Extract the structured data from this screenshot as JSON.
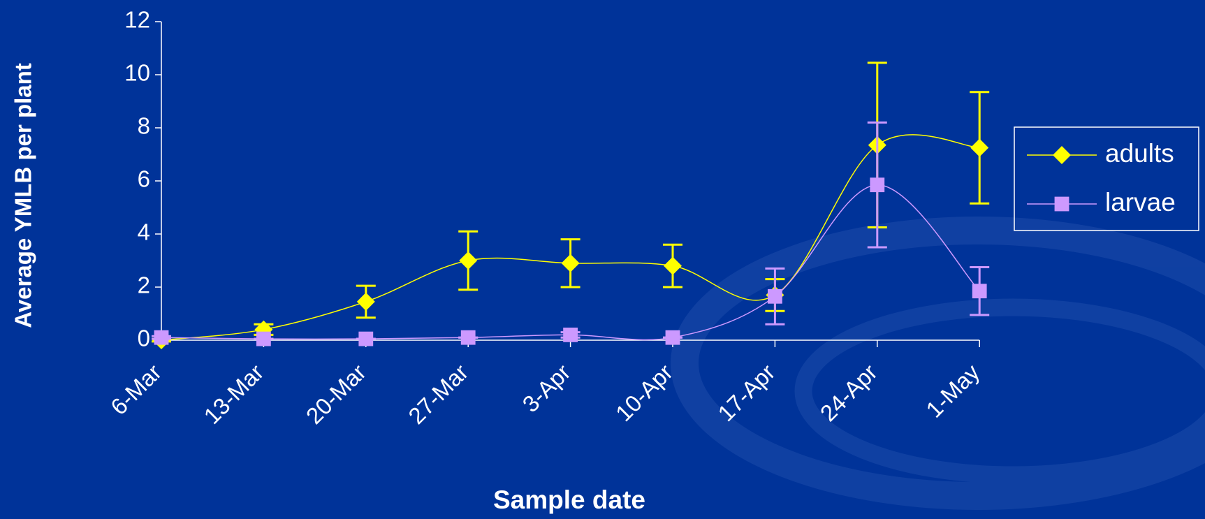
{
  "chart_data": {
    "type": "line",
    "x_label": "Sample date",
    "y_label": "Average YMLB per plant",
    "categories": [
      "6-Mar",
      "13-Mar",
      "20-Mar",
      "27-Mar",
      "3-Apr",
      "10-Apr",
      "17-Apr",
      "24-Apr",
      "1-May"
    ],
    "series": [
      {
        "name": "adults",
        "color": "#ffff00",
        "marker": "diamond",
        "values": [
          0,
          0.4,
          1.45,
          3.0,
          2.9,
          2.8,
          1.7,
          7.35,
          7.25
        ],
        "errors": [
          0.05,
          0.2,
          0.6,
          1.1,
          0.9,
          0.8,
          0.6,
          3.1,
          2.1
        ]
      },
      {
        "name": "larvae",
        "color": "#cc99ff",
        "marker": "square",
        "values": [
          0.1,
          0.05,
          0.05,
          0.1,
          0.2,
          0.1,
          1.65,
          5.85,
          1.85
        ],
        "errors": [
          0.05,
          0,
          0,
          0,
          0.1,
          0,
          1.05,
          2.35,
          0.9
        ]
      }
    ],
    "ylim": [
      0,
      12
    ],
    "yticks": [
      0,
      2,
      4,
      6,
      8,
      10,
      12
    ],
    "smooth": true,
    "legend": "right"
  }
}
